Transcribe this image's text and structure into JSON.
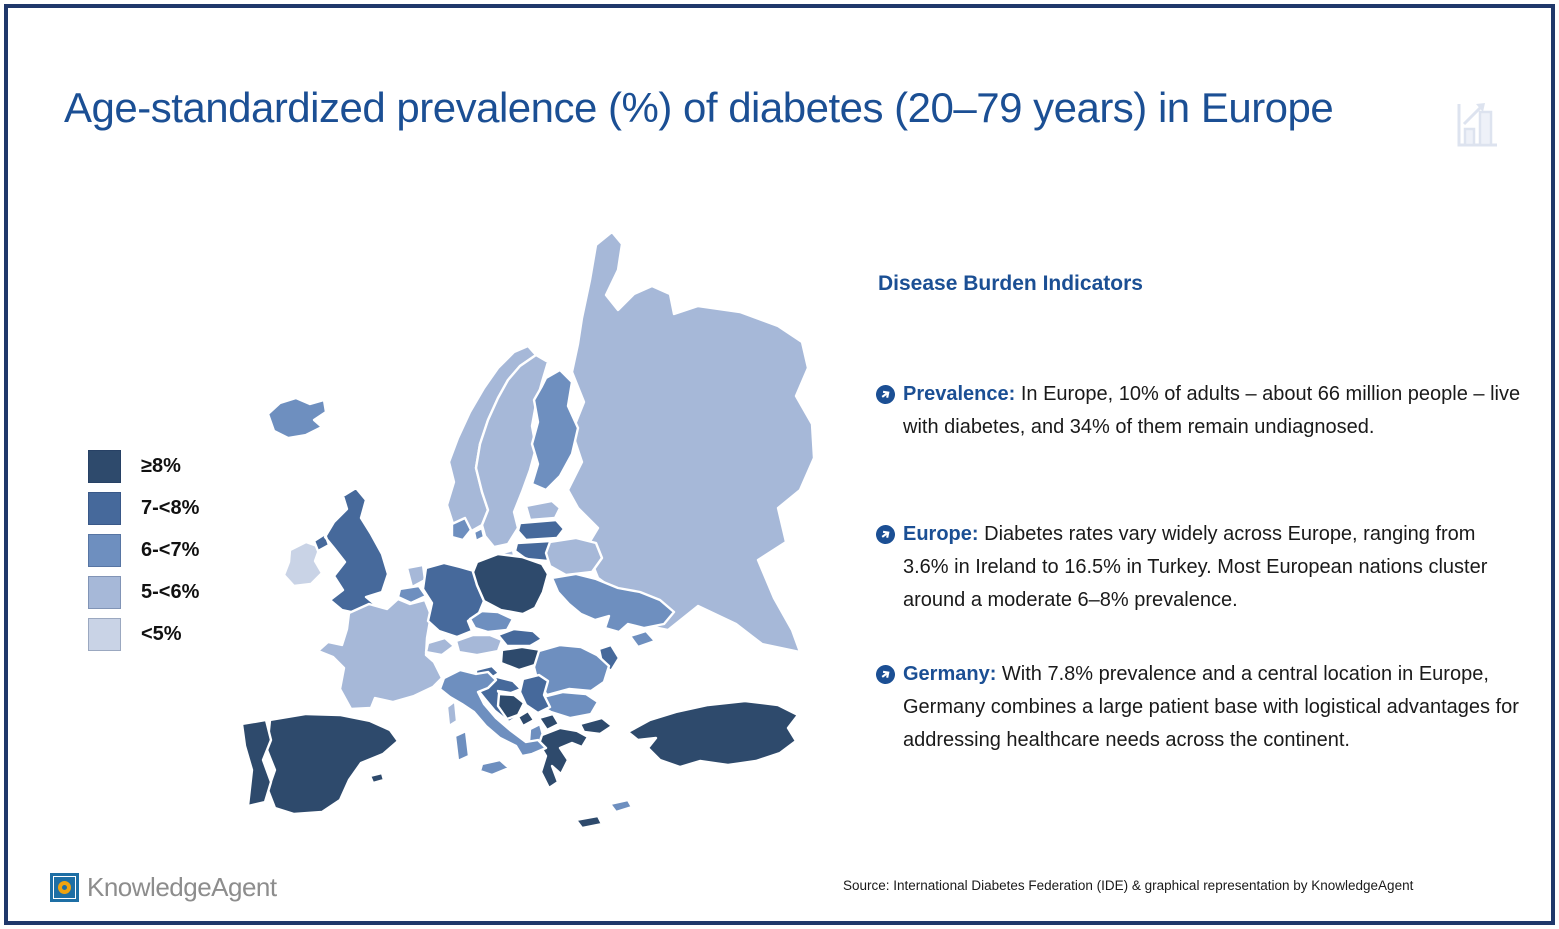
{
  "slide": {
    "title": "Age-standardized prevalence (%) of diabetes (20–79 years) in Europe",
    "title_icon": "bar-chart-growth-icon",
    "colors": {
      "accent_blue": "#1b4f94",
      "frame_navy": "#20386b",
      "body_text": "#1a1a1a"
    }
  },
  "legend": {
    "items": [
      {
        "label": "≥8%",
        "color": "#2e4a6c"
      },
      {
        "label": "7-<8%",
        "color": "#46699b"
      },
      {
        "label": "6-<7%",
        "color": "#6e8fbf"
      },
      {
        "label": "5-<6%",
        "color": "#a6b8d8"
      },
      {
        "label": "<5%",
        "color": "#c9d3e6"
      }
    ]
  },
  "panel": {
    "heading": "Disease Burden Indicators",
    "bullets": [
      {
        "label": "Prevalence:",
        "text": " In Europe, 10% of adults – about 66 million people – live with diabetes, and 34% of them remain undiagnosed."
      },
      {
        "label": "Europe:",
        "text": " Diabetes rates vary widely across Europe, ranging from 3.6% in Ireland to 16.5% in Turkey. Most European nations cluster around a moderate 6–8% prevalence."
      },
      {
        "label": "Germany:",
        "text": " With 7.8% prevalence and a central location in Europe, Germany combines a large patient base with logistical advantages for addressing healthcare needs across the continent."
      }
    ]
  },
  "footer": {
    "logo_text": "KnowledgeAgent",
    "logo_colors": {
      "square": "#1e6fa5",
      "ring": "#f0a30f",
      "text": "#8d8d8d"
    },
    "source": "Source: International Diabetes Federation (IDE) & graphical representation by KnowledgeAgent"
  },
  "chart_data": {
    "type": "heatmap",
    "subtype": "choropleth-map-of-europe",
    "title": "Age-standardized prevalence (%) of diabetes (20–79 years) in Europe",
    "unit": "prevalence bucket (%)",
    "legend_position": "left",
    "bucket_colors": {
      "≥8%": "#2e4a6c",
      "7-<8%": "#46699b",
      "6-<7%": "#6e8fbf",
      "5-<6%": "#a6b8d8",
      "<5%": "#c9d3e6"
    },
    "regions": [
      {
        "name": "Russia",
        "bucket": "5-<6%"
      },
      {
        "name": "Norway",
        "bucket": "5-<6%"
      },
      {
        "name": "Sweden",
        "bucket": "5-<6%"
      },
      {
        "name": "Finland",
        "bucket": "6-<7%"
      },
      {
        "name": "Iceland",
        "bucket": "6-<7%"
      },
      {
        "name": "Ireland",
        "bucket": "<5%"
      },
      {
        "name": "United Kingdom",
        "bucket": "7-<8%"
      },
      {
        "name": "Spain",
        "bucket": "≥8%"
      },
      {
        "name": "Portugal",
        "bucket": "≥8%"
      },
      {
        "name": "France",
        "bucket": "5-<6%"
      },
      {
        "name": "Netherlands",
        "bucket": "5-<6%"
      },
      {
        "name": "Belgium",
        "bucket": "6-<7%"
      },
      {
        "name": "Germany",
        "bucket": "7-<8%"
      },
      {
        "name": "Denmark",
        "bucket": "6-<7%"
      },
      {
        "name": "Estonia",
        "bucket": "5-<6%"
      },
      {
        "name": "Latvia",
        "bucket": "7-<8%"
      },
      {
        "name": "Lithuania",
        "bucket": "7-<8%"
      },
      {
        "name": "Belarus",
        "bucket": "5-<6%"
      },
      {
        "name": "Poland",
        "bucket": "≥8%"
      },
      {
        "name": "Czechia",
        "bucket": "6-<7%"
      },
      {
        "name": "Slovakia",
        "bucket": "7-<8%"
      },
      {
        "name": "Austria",
        "bucket": "5-<6%"
      },
      {
        "name": "Switzerland",
        "bucket": "5-<6%"
      },
      {
        "name": "Hungary",
        "bucket": "≥8%"
      },
      {
        "name": "Ukraine",
        "bucket": "6-<7%"
      },
      {
        "name": "Moldova",
        "bucket": "7-<8%"
      },
      {
        "name": "Romania",
        "bucket": "6-<7%"
      },
      {
        "name": "Bulgaria",
        "bucket": "6-<7%"
      },
      {
        "name": "Slovenia",
        "bucket": "7-<8%"
      },
      {
        "name": "Croatia",
        "bucket": "7-<8%"
      },
      {
        "name": "Bosnia and Herzegovina",
        "bucket": "≥8%"
      },
      {
        "name": "Serbia",
        "bucket": "7-<8%"
      },
      {
        "name": "Montenegro",
        "bucket": "≥8%"
      },
      {
        "name": "Albania",
        "bucket": "6-<7%"
      },
      {
        "name": "North Macedonia",
        "bucket": "≥8%"
      },
      {
        "name": "Greece",
        "bucket": "≥8%"
      },
      {
        "name": "Italy",
        "bucket": "6-<7%"
      },
      {
        "name": "Turkey",
        "bucket": "≥8%"
      },
      {
        "name": "Cyprus",
        "bucket": "6-<7%"
      }
    ],
    "callout_values": {
      "Ireland": "3.6%",
      "Turkey": "16.5%",
      "Germany": "7.8%",
      "Europe adult prevalence": "10%",
      "Europe people with diabetes": "66 million",
      "Share undiagnosed": "34%",
      "Typical European range": "6–8%"
    }
  }
}
